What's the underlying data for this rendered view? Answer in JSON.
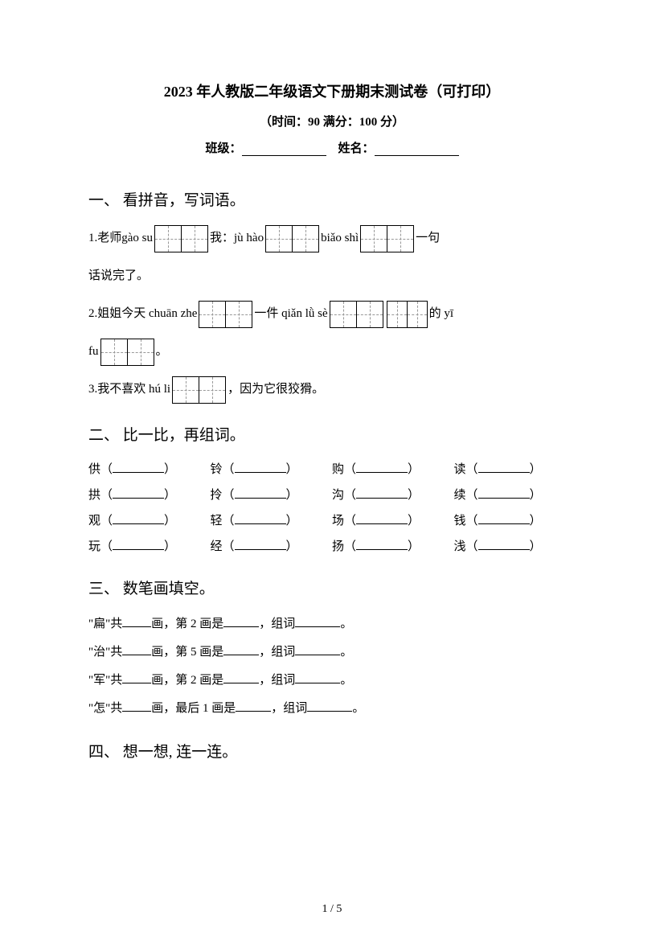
{
  "header": {
    "title": "2023 年人教版二年级语文下册期末测试卷（可打印）",
    "subtitle": "（时间：90   满分：100 分）",
    "class_label": "班级：",
    "name_label": "姓名："
  },
  "section1": {
    "header": "一、 看拼音，写词语。",
    "line1_p1": "1.老师gào su",
    "line1_p2": "我：jù hào",
    "line1_p3": "biǎo shì",
    "line1_p4": "一句",
    "line1b": "话说完了。",
    "line2_p1": "2.姐姐今天 chuān zhe",
    "line2_p2": "一件 qiǎn lǜ sè",
    "line2_p3": "的 yī",
    "line2b_p1": "fu",
    "line2b_p2": "。",
    "line3_p1": "3.我不喜欢 hú li",
    "line3_p2": "，因为它很狡猾。"
  },
  "section2": {
    "header": "二、 比一比，再组词。",
    "rows": [
      [
        "供",
        "铃",
        "购",
        "读"
      ],
      [
        "拱",
        "拎",
        "沟",
        "续"
      ],
      [
        "观",
        "轻",
        "场",
        "钱"
      ],
      [
        "玩",
        "经",
        "扬",
        "浅"
      ]
    ]
  },
  "section3": {
    "header": "三、 数笔画填空。",
    "lines": [
      {
        "char": "扁",
        "stroke": "第 2 画是",
        "end": "，组词"
      },
      {
        "char": "治",
        "stroke": "第 5 画是",
        "end": "，组词"
      },
      {
        "char": "军",
        "stroke": "第 2 画是",
        "end": "，组词"
      },
      {
        "char": "怎",
        "stroke": "最后 1 画是",
        "end": "，组词"
      }
    ]
  },
  "section4": {
    "header": "四、 想一想, 连一连。"
  },
  "footer": {
    "page": "1 / 5"
  }
}
